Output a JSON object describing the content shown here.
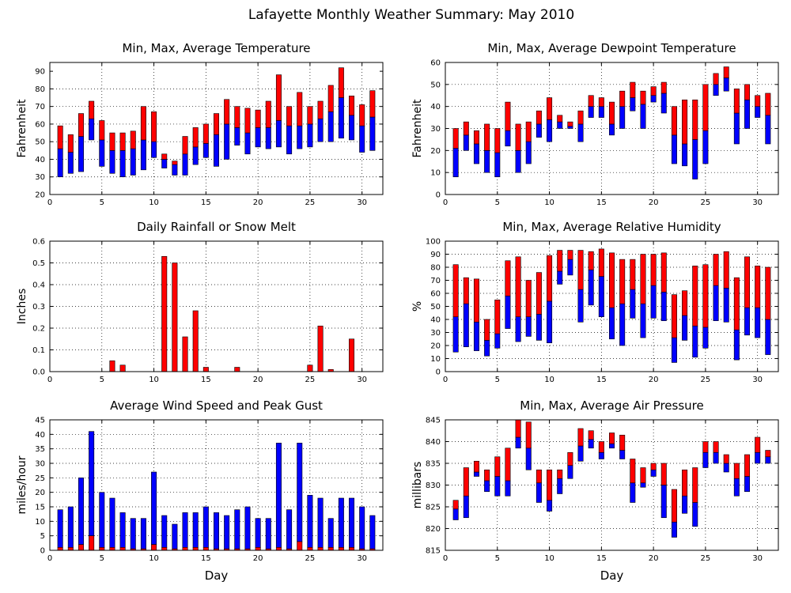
{
  "title": "Lafayette Monthly Weather Summary: May 2010",
  "colors": {
    "upper": "#ff0000",
    "lower": "#0000ff",
    "outline": "#000000"
  },
  "chart_data": [
    {
      "id": "temp",
      "type": "bar",
      "title": "Min, Max, Average Temperature",
      "ylabel": "Fahrenheit",
      "xlabel": "",
      "xlim": [
        0,
        32
      ],
      "ylim": [
        20,
        95
      ],
      "xticks": [
        0,
        5,
        10,
        15,
        20,
        25,
        30
      ],
      "yticks": [
        20,
        30,
        40,
        50,
        60,
        70,
        80,
        90
      ],
      "grid": true,
      "x": [
        1,
        2,
        3,
        4,
        5,
        6,
        7,
        8,
        9,
        10,
        11,
        12,
        13,
        14,
        15,
        16,
        17,
        18,
        19,
        20,
        21,
        22,
        23,
        24,
        25,
        26,
        27,
        28,
        29,
        30,
        31
      ],
      "series": [
        {
          "role": "min",
          "values": [
            30,
            32,
            33,
            51,
            36,
            32,
            30,
            31,
            34,
            41,
            35,
            31,
            31,
            37,
            41,
            36,
            40,
            48,
            43,
            47,
            46,
            47,
            43,
            46,
            47,
            50,
            50,
            52,
            51,
            44,
            45
          ]
        },
        {
          "role": "avg",
          "values": [
            46,
            44,
            53,
            63,
            51,
            45,
            45,
            46,
            51,
            50,
            40,
            37,
            43,
            47,
            49,
            54,
            60,
            58,
            55,
            58,
            58,
            62,
            59,
            59,
            60,
            63,
            67,
            75,
            65,
            59,
            64
          ]
        },
        {
          "role": "max",
          "values": [
            59,
            54,
            66,
            73,
            62,
            55,
            55,
            56,
            70,
            67,
            43,
            39,
            53,
            58,
            60,
            66,
            74,
            70,
            69,
            68,
            73,
            88,
            70,
            78,
            70,
            73,
            82,
            92,
            76,
            71,
            79
          ]
        }
      ]
    },
    {
      "id": "dewpoint",
      "type": "bar",
      "title": "Min, Max, Average Dewpoint Temperature",
      "ylabel": "Fahrenheit",
      "xlabel": "",
      "xlim": [
        0,
        32
      ],
      "ylim": [
        0,
        60
      ],
      "xticks": [
        0,
        5,
        10,
        15,
        20,
        25,
        30
      ],
      "yticks": [
        0,
        10,
        20,
        30,
        40,
        50,
        60
      ],
      "grid": true,
      "x": [
        1,
        2,
        3,
        4,
        5,
        6,
        7,
        8,
        9,
        10,
        11,
        12,
        13,
        14,
        15,
        16,
        17,
        18,
        19,
        20,
        21,
        22,
        23,
        24,
        25,
        26,
        27,
        28,
        29,
        30,
        31
      ],
      "series": [
        {
          "role": "min",
          "values": [
            8,
            20,
            14,
            10,
            8,
            22,
            10,
            14,
            26,
            24,
            30,
            30,
            24,
            35,
            35,
            27,
            30,
            38,
            30,
            42,
            37,
            14,
            13,
            7,
            14,
            45,
            47,
            23,
            30,
            35,
            23
          ]
        },
        {
          "role": "avg",
          "values": [
            21,
            27,
            23,
            20,
            19,
            29,
            20,
            24,
            32,
            34,
            33,
            31,
            32,
            40,
            40,
            32,
            40,
            44,
            41,
            45,
            46,
            27,
            23,
            25,
            29,
            50,
            53,
            37,
            43,
            40,
            36
          ]
        },
        {
          "role": "max",
          "values": [
            30,
            33,
            29,
            32,
            30,
            42,
            32,
            33,
            38,
            44,
            36,
            33,
            38,
            45,
            44,
            42,
            47,
            51,
            47,
            49,
            51,
            40,
            43,
            43,
            50,
            55,
            58,
            48,
            50,
            45,
            46
          ]
        }
      ]
    },
    {
      "id": "rain",
      "type": "bar",
      "title": "Daily Rainfall or Snow Melt",
      "ylabel": "Inches",
      "xlabel": "",
      "xlim": [
        0,
        32
      ],
      "ylim": [
        0,
        0.6
      ],
      "xticks": [
        0,
        5,
        10,
        15,
        20,
        25,
        30
      ],
      "ytick_labels": [
        "0.0",
        "0.1",
        "0.2",
        "0.3",
        "0.4",
        "0.5",
        "0.6"
      ],
      "yticks": [
        0,
        0.1,
        0.2,
        0.3,
        0.4,
        0.5,
        0.6
      ],
      "grid": true,
      "x": [
        1,
        2,
        3,
        4,
        5,
        6,
        7,
        8,
        9,
        10,
        11,
        12,
        13,
        14,
        15,
        16,
        17,
        18,
        19,
        20,
        21,
        22,
        23,
        24,
        25,
        26,
        27,
        28,
        29,
        30,
        31
      ],
      "series": [
        {
          "role": "rain",
          "values": [
            0,
            0,
            0,
            0,
            0,
            0.05,
            0.03,
            0,
            0,
            0,
            0.53,
            0.5,
            0.16,
            0.28,
            0.02,
            0,
            0,
            0.02,
            0,
            0,
            0,
            0,
            0,
            0,
            0.03,
            0.21,
            0.01,
            0,
            0.15,
            0,
            0
          ]
        }
      ]
    },
    {
      "id": "humidity",
      "type": "bar",
      "title": "Min, Max, Average Relative Humidity",
      "ylabel": "%",
      "xlabel": "",
      "xlim": [
        0,
        32
      ],
      "ylim": [
        0,
        100
      ],
      "xticks": [
        0,
        5,
        10,
        15,
        20,
        25,
        30
      ],
      "yticks": [
        0,
        10,
        20,
        30,
        40,
        50,
        60,
        70,
        80,
        90,
        100
      ],
      "grid": true,
      "x": [
        1,
        2,
        3,
        4,
        5,
        6,
        7,
        8,
        9,
        10,
        11,
        12,
        13,
        14,
        15,
        16,
        17,
        18,
        19,
        20,
        21,
        22,
        23,
        24,
        25,
        26,
        27,
        28,
        29,
        30,
        31
      ],
      "series": [
        {
          "role": "min",
          "values": [
            15,
            19,
            16,
            12,
            18,
            33,
            23,
            27,
            24,
            22,
            67,
            74,
            38,
            51,
            42,
            25,
            20,
            41,
            26,
            41,
            39,
            7,
            24,
            11,
            18,
            39,
            38,
            9,
            28,
            26,
            13
          ]
        },
        {
          "role": "avg",
          "values": [
            42,
            52,
            38,
            24,
            29,
            58,
            42,
            42,
            44,
            54,
            77,
            86,
            63,
            78,
            73,
            49,
            52,
            63,
            52,
            66,
            61,
            26,
            43,
            35,
            34,
            66,
            64,
            32,
            49,
            49,
            40
          ]
        },
        {
          "role": "max",
          "values": [
            82,
            72,
            71,
            40,
            55,
            85,
            88,
            70,
            76,
            89,
            93,
            93,
            93,
            92,
            94,
            91,
            86,
            86,
            90,
            90,
            91,
            59,
            62,
            81,
            82,
            90,
            92,
            72,
            88,
            81,
            80
          ]
        }
      ]
    },
    {
      "id": "wind",
      "type": "bar",
      "title": "Average Wind Speed and Peak Gust",
      "ylabel": "miles/hour",
      "xlabel": "Day",
      "xlim": [
        0,
        32
      ],
      "ylim": [
        0,
        45
      ],
      "xticks": [
        0,
        5,
        10,
        15,
        20,
        25,
        30
      ],
      "yticks": [
        0,
        5,
        10,
        15,
        20,
        25,
        30,
        35,
        40,
        45
      ],
      "grid": true,
      "x": [
        1,
        2,
        3,
        4,
        5,
        6,
        7,
        8,
        9,
        10,
        11,
        12,
        13,
        14,
        15,
        16,
        17,
        18,
        19,
        20,
        21,
        22,
        23,
        24,
        25,
        26,
        27,
        28,
        29,
        30,
        31
      ],
      "series": [
        {
          "role": "avg_speed",
          "values": [
            1,
            1,
            2,
            5,
            1,
            1,
            1,
            0.5,
            0.5,
            2,
            1,
            0.5,
            1,
            1,
            1,
            0.5,
            0.5,
            0.5,
            0.5,
            1,
            0.5,
            1,
            0.5,
            3,
            1,
            1,
            1,
            1,
            1,
            0.5,
            0.5
          ]
        },
        {
          "role": "peak_gust",
          "values": [
            14,
            15,
            25,
            41,
            20,
            18,
            13,
            11,
            11,
            27,
            12,
            9,
            13,
            13,
            15,
            13,
            12,
            14,
            15,
            11,
            11,
            37,
            14,
            37,
            19,
            18,
            11,
            18,
            18,
            15,
            12
          ]
        }
      ]
    },
    {
      "id": "pressure",
      "type": "bar",
      "title": "Min, Max, Average Air Pressure",
      "ylabel": "millibars",
      "xlabel": "Day",
      "xlim": [
        0,
        32
      ],
      "ylim": [
        815,
        845
      ],
      "xticks": [
        0,
        5,
        10,
        15,
        20,
        25,
        30
      ],
      "yticks": [
        815,
        820,
        825,
        830,
        835,
        840,
        845
      ],
      "grid": true,
      "x": [
        1,
        2,
        3,
        4,
        5,
        6,
        7,
        8,
        9,
        10,
        11,
        12,
        13,
        14,
        15,
        16,
        17,
        18,
        19,
        20,
        21,
        22,
        23,
        24,
        25,
        26,
        27,
        28,
        29,
        30,
        31
      ],
      "series": [
        {
          "role": "min",
          "values": [
            822,
            822.5,
            832,
            828.5,
            827.5,
            827.5,
            838.5,
            833.5,
            826,
            824,
            828,
            831.5,
            835.5,
            838.5,
            836,
            838.5,
            836,
            826,
            829.5,
            832,
            822.5,
            818,
            823.5,
            820.5,
            834,
            835,
            833,
            827.5,
            828.5,
            835,
            835
          ]
        },
        {
          "role": "avg",
          "values": [
            824.5,
            827.5,
            833,
            831,
            832,
            831,
            841,
            838.5,
            830.5,
            826.5,
            831.5,
            834.5,
            839,
            840.5,
            837.5,
            839.5,
            838,
            830.5,
            830.5,
            833.5,
            830,
            821.5,
            827.5,
            826,
            837.5,
            837.5,
            835,
            831.5,
            832,
            837.5,
            836.5
          ]
        },
        {
          "role": "max",
          "values": [
            826.5,
            834,
            835.5,
            833.5,
            836.5,
            838.5,
            845,
            844.5,
            833.5,
            833.5,
            833.5,
            837.5,
            843,
            842.5,
            840,
            842,
            841.5,
            836,
            834,
            835,
            835,
            829,
            833.5,
            834,
            840,
            840,
            837,
            835,
            837,
            841,
            838
          ]
        }
      ]
    }
  ]
}
